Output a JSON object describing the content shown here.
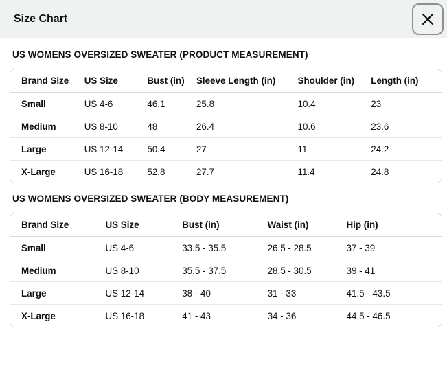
{
  "modal": {
    "title": "Size Chart",
    "close_icon": "x"
  },
  "colors": {
    "header_bg": "#f0f2f2",
    "border": "#d5d9d9",
    "row_divider": "#e7e7e7",
    "text": "#0f1111",
    "close_border": "#8d9191"
  },
  "sections": [
    {
      "title": "US WOMENS OVERSIZED SWEATER (PRODUCT MEASUREMENT)",
      "columns": [
        "Brand Size",
        "US Size",
        "Bust (in)",
        "Sleeve Length (in)",
        "Shoulder (in)",
        "Length (in)"
      ],
      "rows": [
        [
          "Small",
          "US 4-6",
          "46.1",
          "25.8",
          "10.4",
          "23"
        ],
        [
          "Medium",
          "US 8-10",
          "48",
          "26.4",
          "10.6",
          "23.6"
        ],
        [
          "Large",
          "US 12-14",
          "50.4",
          "27",
          "11",
          "24.2"
        ],
        [
          "X-Large",
          "US 16-18",
          "52.8",
          "27.7",
          "11.4",
          "24.8"
        ]
      ]
    },
    {
      "title": "US WOMENS OVERSIZED SWEATER (BODY MEASUREMENT)",
      "columns": [
        "Brand Size",
        "US Size",
        "Bust (in)",
        "Waist (in)",
        "Hip (in)"
      ],
      "rows": [
        [
          "Small",
          "US 4-6",
          "33.5 - 35.5",
          "26.5 - 28.5",
          "37 - 39"
        ],
        [
          "Medium",
          "US 8-10",
          "35.5 - 37.5",
          "28.5 - 30.5",
          "39 - 41"
        ],
        [
          "Large",
          "US 12-14",
          "38 - 40",
          "31 - 33",
          "41.5 - 43.5"
        ],
        [
          "X-Large",
          "US 16-18",
          "41 - 43",
          "34 - 36",
          "44.5 - 46.5"
        ]
      ]
    }
  ]
}
